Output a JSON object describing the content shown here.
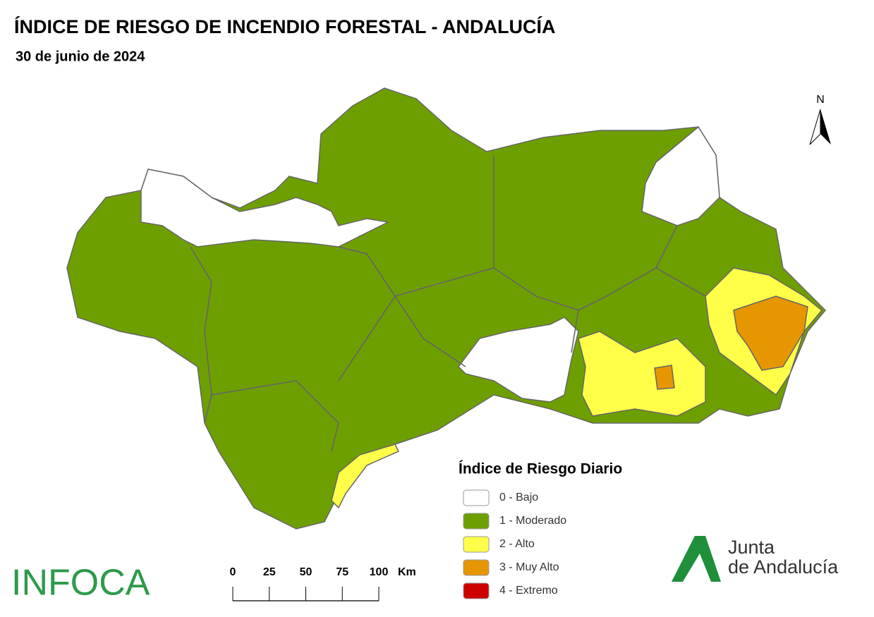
{
  "title": "ÍNDICE DE RIESGO DE INCENDIO FORESTAL - ANDALUCÍA",
  "subtitle": "30 de junio de 2024",
  "north": "N",
  "legend": {
    "title": "Índice de Riesgo Diario",
    "items": [
      {
        "label": "0 - Bajo",
        "color": "#ffffff"
      },
      {
        "label": "1 - Moderado",
        "color": "#6e9f00"
      },
      {
        "label": "2 - Alto",
        "color": "#ffff4a"
      },
      {
        "label": "3 - Muy Alto",
        "color": "#e69600"
      },
      {
        "label": "4 - Extremo",
        "color": "#cc0000"
      }
    ]
  },
  "scale_bar": {
    "ticks": [
      0,
      25,
      50,
      75,
      100
    ],
    "unit": "Km"
  },
  "logos": {
    "infoca": "INFOCA",
    "junta": [
      "Junta",
      "de Andalucía"
    ]
  }
}
